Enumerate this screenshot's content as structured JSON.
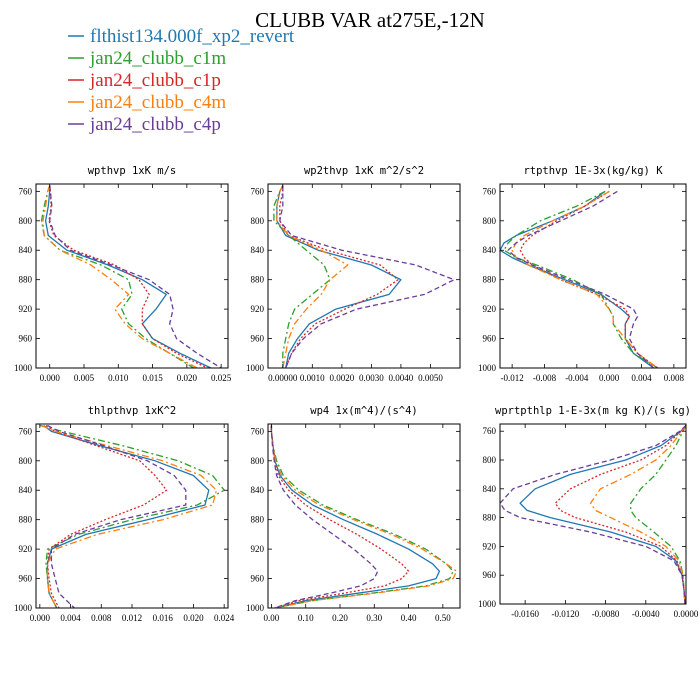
{
  "figure": {
    "title": "CLUBB VAR at275E,-12N",
    "legend": [
      {
        "label": "flthist134.000f_xp2_revert",
        "color": "#1f77b4",
        "dash": "solid"
      },
      {
        "label": "jan24_clubb_c1m",
        "color": "#2ca02c",
        "dash": "dashdot"
      },
      {
        "label": "jan24_clubb_c1p",
        "color": "#d62728",
        "dash": "dot"
      },
      {
        "label": "jan24_clubb_c4m",
        "color": "#ff7f0e",
        "dash": "dashdot"
      },
      {
        "label": "jan24_clubb_c4p",
        "color": "#6a3d9a",
        "dash": "dash"
      }
    ]
  },
  "chart_data": [
    {
      "type": "line",
      "title": "wpthvp  1xK m/s",
      "xlim": [
        -0.002,
        0.026
      ],
      "ylim": [
        1000,
        750
      ],
      "xticks": [
        0,
        0.005,
        0.01,
        0.015,
        0.02,
        0.025
      ],
      "xticklabels": [
        "0.000",
        "0.005",
        "0.010",
        "0.015",
        "0.020",
        "0.025"
      ],
      "yticks": [
        760,
        800,
        840,
        880,
        920,
        960,
        1000
      ],
      "y": [
        752,
        760,
        780,
        800,
        820,
        840,
        860,
        880,
        900,
        920,
        940,
        960,
        980,
        1000
      ],
      "series": [
        {
          "name": "flthist134.000f_xp2_revert",
          "values": [
            0.0,
            0.0,
            -0.0002,
            -0.0006,
            -0.0002,
            0.0025,
            0.0085,
            0.0135,
            0.017,
            0.0155,
            0.0135,
            0.015,
            0.019,
            0.0235
          ]
        },
        {
          "name": "jan24_clubb_c1m",
          "values": [
            0.0,
            -0.0003,
            -0.0008,
            -0.0012,
            -0.0008,
            0.0015,
            0.0075,
            0.0115,
            0.012,
            0.0105,
            0.0115,
            0.014,
            0.0175,
            0.021
          ]
        },
        {
          "name": "jan24_clubb_c1p",
          "values": [
            0.0,
            0.0001,
            0.0002,
            -0.0001,
            0.0006,
            0.0035,
            0.0095,
            0.013,
            0.0145,
            0.0135,
            0.0135,
            0.015,
            0.0185,
            0.023
          ]
        },
        {
          "name": "jan24_clubb_c4m",
          "values": [
            0.0,
            -0.0003,
            -0.0006,
            -0.001,
            -0.0008,
            0.0015,
            0.006,
            0.009,
            0.0115,
            0.0095,
            0.011,
            0.0135,
            0.0175,
            0.0215
          ]
        },
        {
          "name": "jan24_clubb_c4p",
          "values": [
            0.0,
            0.0001,
            0.0003,
            0.0,
            0.0008,
            0.003,
            0.009,
            0.0145,
            0.0175,
            0.018,
            0.0175,
            0.0185,
            0.0215,
            0.025
          ]
        }
      ]
    },
    {
      "type": "line",
      "title": "wp2thvp  1xK m^2/s^2",
      "xlim": [
        -0.0005,
        0.006
      ],
      "ylim": [
        1000,
        750
      ],
      "xticks": [
        0,
        0.001,
        0.002,
        0.003,
        0.004,
        0.005
      ],
      "xticklabels": [
        "0.00000",
        "0.0010",
        "0.0020",
        "0.0030",
        "0.0040",
        "0.0050"
      ],
      "yticks": [
        760,
        800,
        840,
        880,
        920,
        960,
        1000
      ],
      "y": [
        752,
        760,
        780,
        800,
        820,
        840,
        860,
        880,
        900,
        920,
        940,
        960,
        980,
        1000
      ],
      "series": [
        {
          "name": "flthist134.000f_xp2_revert",
          "values": [
            0.0,
            -0.0001,
            -0.0002,
            -0.0002,
            0.0001,
            0.0012,
            0.003,
            0.004,
            0.0036,
            0.0018,
            0.0009,
            0.0005,
            0.0002,
            0.0001
          ]
        },
        {
          "name": "jan24_clubb_c1m",
          "values": [
            0.0,
            -0.0001,
            -0.0003,
            -0.0003,
            0.0002,
            0.0008,
            0.0014,
            0.0016,
            0.001,
            0.0004,
            0.0002,
            0.0001,
            0.0,
            0.0
          ]
        },
        {
          "name": "jan24_clubb_c1p",
          "values": [
            0.0,
            0.0,
            -0.0001,
            -0.0001,
            0.0002,
            0.0015,
            0.0033,
            0.0039,
            0.0032,
            0.0021,
            0.0011,
            0.0006,
            0.0003,
            0.0001
          ]
        },
        {
          "name": "jan24_clubb_c4m",
          "values": [
            0.0,
            -0.0001,
            -0.0002,
            -0.0002,
            0.0002,
            0.0013,
            0.0022,
            0.0016,
            0.0013,
            0.0008,
            0.0004,
            0.0002,
            0.0001,
            0.0
          ]
        },
        {
          "name": "jan24_clubb_c4p",
          "values": [
            0.0,
            0.0,
            0.0,
            -0.0001,
            0.0003,
            0.002,
            0.0045,
            0.0058,
            0.0048,
            0.0025,
            0.0013,
            0.0007,
            0.0003,
            0.0001
          ]
        }
      ]
    },
    {
      "type": "line",
      "title": "rtpthvp  1E-3x(kg/kg) K",
      "xlim": [
        -0.0135,
        0.0095
      ],
      "ylim": [
        1000,
        750
      ],
      "xticks": [
        -0.012,
        -0.008,
        -0.004,
        0.0,
        0.004,
        0.008
      ],
      "xticklabels": [
        "-0.012",
        "-0.008",
        "-0.004",
        "0.000",
        "0.004",
        "0.008"
      ],
      "yticks": [
        760,
        800,
        840,
        880,
        920,
        960,
        1000
      ],
      "y": [
        760,
        780,
        800,
        820,
        830,
        840,
        850,
        860,
        880,
        900,
        920,
        930,
        940,
        960,
        980,
        1000
      ],
      "series": [
        {
          "name": "flthist134.000f_xp2_revert",
          "values": [
            -0.0005,
            -0.003,
            -0.007,
            -0.0115,
            -0.013,
            -0.0135,
            -0.012,
            -0.01,
            -0.0055,
            -0.001,
            0.0015,
            0.0025,
            0.002,
            0.002,
            0.003,
            0.0055
          ]
        },
        {
          "name": "jan24_clubb_c1m",
          "values": [
            -0.0005,
            -0.004,
            -0.0085,
            -0.0115,
            -0.0125,
            -0.013,
            -0.0115,
            -0.009,
            -0.0045,
            -0.001,
            0.0,
            0.0005,
            0.0005,
            0.0015,
            0.003,
            0.006
          ]
        },
        {
          "name": "jan24_clubb_c1p",
          "values": [
            0.0,
            -0.003,
            -0.0065,
            -0.0095,
            -0.0105,
            -0.011,
            -0.0105,
            -0.0095,
            -0.006,
            -0.0015,
            0.002,
            0.0025,
            0.002,
            0.002,
            0.0035,
            0.006
          ]
        },
        {
          "name": "jan24_clubb_c4m",
          "values": [
            0.0,
            -0.003,
            -0.007,
            -0.0105,
            -0.0115,
            -0.012,
            -0.0115,
            -0.01,
            -0.006,
            -0.0015,
            0.0,
            0.0005,
            0.0005,
            0.002,
            0.0035,
            0.006
          ]
        },
        {
          "name": "jan24_clubb_c4p",
          "values": [
            0.001,
            -0.002,
            -0.006,
            -0.01,
            -0.0115,
            -0.0125,
            -0.0115,
            -0.0095,
            -0.005,
            -0.0005,
            0.003,
            0.0035,
            0.003,
            0.0025,
            0.0035,
            0.0055
          ]
        }
      ]
    },
    {
      "type": "line",
      "title": "thlpthvp  1xK^2",
      "xlim": [
        -0.0005,
        0.0245
      ],
      "ylim": [
        1000,
        750
      ],
      "xticks": [
        0,
        0.004,
        0.008,
        0.012,
        0.016,
        0.02,
        0.024
      ],
      "xticklabels": [
        "0.000",
        "0.004",
        "0.008",
        "0.012",
        "0.016",
        "0.020",
        "0.024"
      ],
      "yticks": [
        760,
        800,
        840,
        880,
        920,
        960,
        1000
      ],
      "y": [
        752,
        760,
        780,
        800,
        820,
        840,
        860,
        880,
        900,
        920,
        940,
        960,
        980,
        1000
      ],
      "series": [
        {
          "name": "flthist134.000f_xp2_revert",
          "values": [
            0.0005,
            0.0015,
            0.008,
            0.015,
            0.02,
            0.022,
            0.0215,
            0.014,
            0.006,
            0.0015,
            0.001,
            0.001,
            0.0012,
            0.0022
          ]
        },
        {
          "name": "jan24_clubb_c1m",
          "values": [
            0.0,
            0.003,
            0.011,
            0.018,
            0.0225,
            0.024,
            0.0205,
            0.012,
            0.005,
            0.001,
            0.0008,
            0.001,
            0.0012,
            0.0022
          ]
        },
        {
          "name": "jan24_clubb_c1p",
          "values": [
            0.0008,
            0.002,
            0.0075,
            0.013,
            0.015,
            0.0165,
            0.0135,
            0.0085,
            0.004,
            0.0012,
            0.001,
            0.0012,
            0.0015,
            0.0025
          ]
        },
        {
          "name": "jan24_clubb_c4m",
          "values": [
            0.0002,
            0.002,
            0.009,
            0.016,
            0.021,
            0.023,
            0.0225,
            0.016,
            0.0075,
            0.002,
            0.001,
            0.001,
            0.0012,
            0.0022
          ]
        },
        {
          "name": "jan24_clubb_c4p",
          "values": [
            0.001,
            0.0025,
            0.0085,
            0.014,
            0.0175,
            0.019,
            0.019,
            0.0105,
            0.0045,
            0.0015,
            0.0015,
            0.002,
            0.0025,
            0.0045
          ]
        }
      ]
    },
    {
      "type": "line",
      "title": "wp4  1x(m^4)/(s^4)",
      "xlim": [
        -0.01,
        0.55
      ],
      "ylim": [
        1000,
        750
      ],
      "xticks": [
        0,
        0.1,
        0.2,
        0.3,
        0.4,
        0.5
      ],
      "xticklabels": [
        "0.00",
        "0.10",
        "0.20",
        "0.30",
        "0.40",
        "0.50"
      ],
      "yticks": [
        760,
        800,
        840,
        880,
        920,
        960,
        1000
      ],
      "y": [
        752,
        760,
        780,
        800,
        820,
        840,
        860,
        880,
        900,
        920,
        940,
        950,
        960,
        970,
        980,
        990,
        1000
      ],
      "series": [
        {
          "name": "flthist134.000f_xp2_revert",
          "values": [
            0.0,
            0.0,
            0.005,
            0.01,
            0.025,
            0.06,
            0.12,
            0.21,
            0.31,
            0.4,
            0.47,
            0.49,
            0.48,
            0.4,
            0.25,
            0.1,
            0.01
          ]
        },
        {
          "name": "jan24_clubb_c1m",
          "values": [
            0.0,
            0.0,
            0.005,
            0.015,
            0.035,
            0.08,
            0.15,
            0.25,
            0.36,
            0.45,
            0.51,
            0.53,
            0.52,
            0.45,
            0.29,
            0.12,
            0.01
          ]
        },
        {
          "name": "jan24_clubb_c1p",
          "values": [
            0.0,
            0.0,
            0.005,
            0.01,
            0.02,
            0.05,
            0.1,
            0.17,
            0.25,
            0.32,
            0.38,
            0.4,
            0.38,
            0.33,
            0.21,
            0.08,
            0.01
          ]
        },
        {
          "name": "jan24_clubb_c4m",
          "values": [
            0.0,
            0.0,
            0.005,
            0.012,
            0.03,
            0.07,
            0.14,
            0.24,
            0.35,
            0.44,
            0.51,
            0.54,
            0.53,
            0.46,
            0.3,
            0.12,
            0.01
          ]
        },
        {
          "name": "jan24_clubb_c4p",
          "values": [
            0.0,
            0.0,
            0.003,
            0.008,
            0.015,
            0.035,
            0.07,
            0.12,
            0.18,
            0.24,
            0.29,
            0.31,
            0.3,
            0.26,
            0.17,
            0.07,
            0.01
          ]
        }
      ]
    },
    {
      "type": "line",
      "title": "wprtpthlp  1-E-3x(m kg K)/(s kg)",
      "xlim": [
        -0.0185,
        0.0
      ],
      "ylim": [
        1000,
        750
      ],
      "xticks": [
        -0.016,
        -0.012,
        -0.008,
        -0.004,
        0.0
      ],
      "xticklabels": [
        "-0.0160",
        "-0.0120",
        "-0.0080",
        "-0.0040",
        "0.0000"
      ],
      "yticks": [
        760,
        800,
        840,
        880,
        920,
        960,
        1000
      ],
      "y": [
        752,
        760,
        780,
        800,
        820,
        840,
        860,
        870,
        880,
        900,
        920,
        940,
        960,
        980,
        1000
      ],
      "series": [
        {
          "name": "flthist134.000f_xp2_revert",
          "values": [
            0.0,
            -0.0005,
            -0.0025,
            -0.006,
            -0.0115,
            -0.015,
            -0.0165,
            -0.0158,
            -0.0135,
            -0.0075,
            -0.003,
            -0.001,
            -0.0004,
            -0.0002,
            -0.0001
          ]
        },
        {
          "name": "jan24_clubb_c1m",
          "values": [
            0.0,
            -0.0003,
            -0.001,
            -0.002,
            -0.003,
            -0.0045,
            -0.0055,
            -0.0055,
            -0.005,
            -0.0032,
            -0.0015,
            -0.0006,
            -0.0003,
            -0.0002,
            -0.0001
          ]
        },
        {
          "name": "jan24_clubb_c1p",
          "values": [
            0.0,
            -0.0005,
            -0.002,
            -0.0045,
            -0.0085,
            -0.0115,
            -0.013,
            -0.0125,
            -0.011,
            -0.006,
            -0.0025,
            -0.0009,
            -0.0004,
            -0.0002,
            -0.0001
          ]
        },
        {
          "name": "jan24_clubb_c4m",
          "values": [
            0.0,
            -0.0004,
            -0.0015,
            -0.003,
            -0.0055,
            -0.0085,
            -0.0095,
            -0.009,
            -0.0075,
            -0.0045,
            -0.002,
            -0.0007,
            -0.0003,
            -0.0002,
            -0.0001
          ]
        },
        {
          "name": "jan24_clubb_c4p",
          "values": [
            0.0,
            -0.0006,
            -0.003,
            -0.0075,
            -0.013,
            -0.0172,
            -0.0185,
            -0.018,
            -0.0165,
            -0.0095,
            -0.004,
            -0.0012,
            -0.0004,
            -0.0002,
            -0.0001
          ]
        }
      ]
    }
  ]
}
